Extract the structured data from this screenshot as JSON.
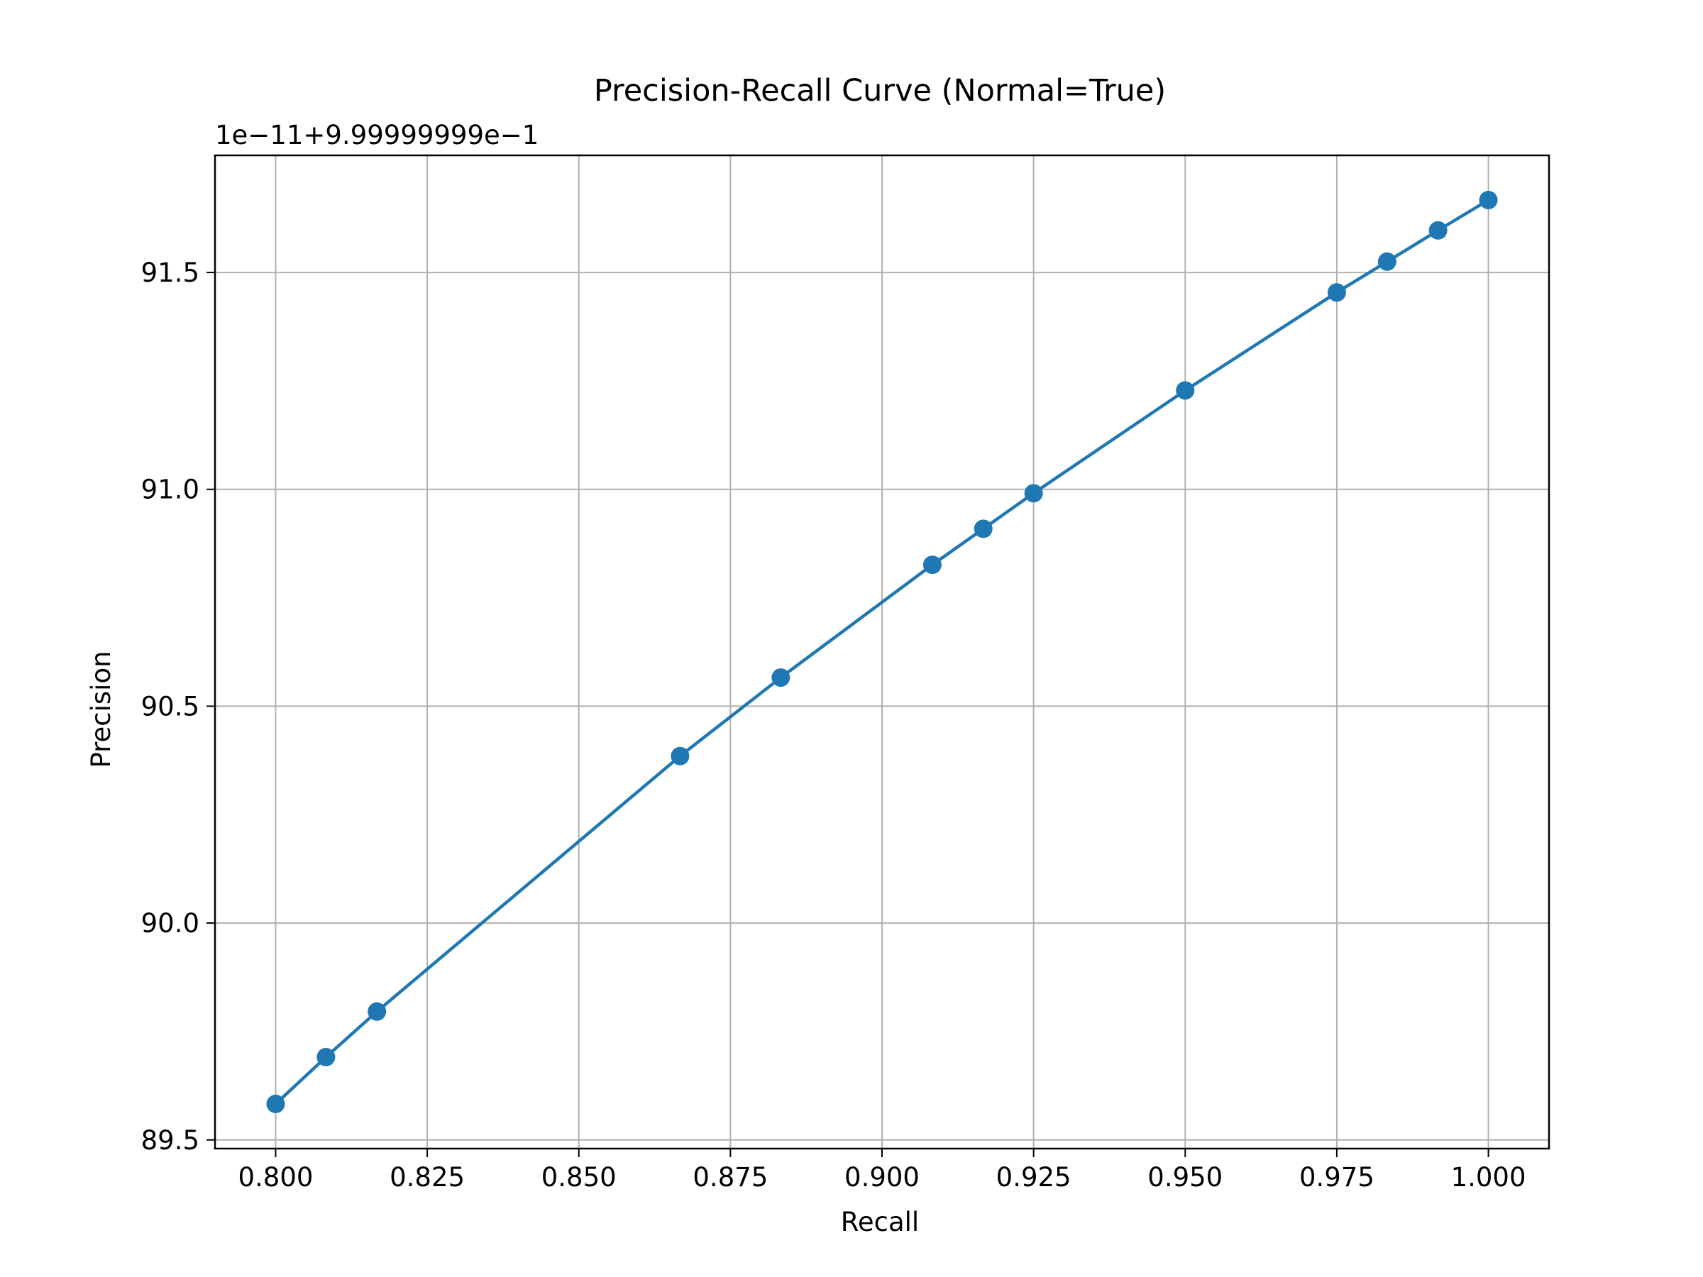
{
  "chart_data": {
    "type": "line",
    "title": "Precision-Recall Curve (Normal=True)",
    "xlabel": "Recall",
    "ylabel": "Precision",
    "y_offset_text": "1e−11+9.99999999e−1",
    "xlim": [
      0.79,
      1.01
    ],
    "ylim": [
      89.48,
      91.77
    ],
    "x_ticks": [
      0.8,
      0.825,
      0.85,
      0.875,
      0.9,
      0.925,
      0.95,
      0.975,
      1.0
    ],
    "x_tick_labels": [
      "0.800",
      "0.825",
      "0.850",
      "0.875",
      "0.900",
      "0.925",
      "0.950",
      "0.975",
      "1.000"
    ],
    "y_ticks": [
      89.5,
      90.0,
      90.5,
      91.0,
      91.5
    ],
    "y_tick_labels": [
      "89.5",
      "90.0",
      "90.5",
      "91.0",
      "91.5"
    ],
    "grid": true,
    "series": [
      {
        "color": "#1f77b4",
        "marker": "circle",
        "x": [
          0.8,
          0.8083,
          0.8167,
          0.8667,
          0.8833,
          0.9083,
          0.9167,
          0.925,
          0.95,
          0.975,
          0.9833,
          0.9917,
          1.0
        ],
        "y": [
          89.583,
          89.691,
          89.796,
          90.385,
          90.566,
          90.826,
          90.909,
          90.991,
          91.228,
          91.454,
          91.525,
          91.597,
          91.667
        ]
      }
    ]
  }
}
